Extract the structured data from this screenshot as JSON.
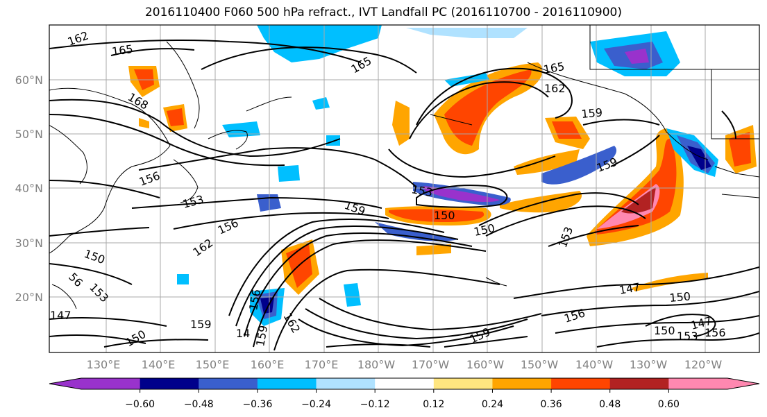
{
  "title": "2016110400 F060 500 hPa refract., IVT Landfall PC (2016110700 - 2016110900)",
  "map": {
    "lat_labels": [
      "60°N",
      "50°N",
      "40°N",
      "30°N",
      "20°N"
    ],
    "lon_labels": [
      "130°E",
      "140°E",
      "150°E",
      "160°E",
      "170°E",
      "180°W",
      "170°W",
      "160°W",
      "150°W",
      "140°W",
      "130°W",
      "120°W"
    ],
    "contour_labels": [
      {
        "text": "162"
      },
      {
        "text": "165"
      },
      {
        "text": "165"
      },
      {
        "text": "168"
      },
      {
        "text": "165"
      },
      {
        "text": "162"
      },
      {
        "text": "159"
      },
      {
        "text": "156"
      },
      {
        "text": "153"
      },
      {
        "text": "156"
      },
      {
        "text": "159"
      },
      {
        "text": "150"
      },
      {
        "text": "153"
      },
      {
        "text": "150"
      },
      {
        "text": "162"
      },
      {
        "text": "150"
      },
      {
        "text": "159"
      },
      {
        "text": "153"
      },
      {
        "text": "56"
      },
      {
        "text": "153"
      },
      {
        "text": "147"
      },
      {
        "text": "159"
      },
      {
        "text": "156"
      },
      {
        "text": "162"
      },
      {
        "text": "159"
      },
      {
        "text": "156"
      },
      {
        "text": "147"
      },
      {
        "text": "150"
      },
      {
        "text": "150"
      },
      {
        "text": "153"
      },
      {
        "text": "147"
      },
      {
        "text": "156"
      },
      {
        "text": "150"
      },
      {
        "text": "159"
      },
      {
        "text": "14"
      }
    ]
  },
  "colorbar": {
    "colors": [
      "#9932cc",
      "#00008b",
      "#3a5fcd",
      "#00bfff",
      "#b0e2ff",
      "#ffffff",
      "#ffe680",
      "#ffa500",
      "#ff4500",
      "#b22222",
      "#ff88b0"
    ],
    "tick_labels": [
      "−0.60",
      "−0.48",
      "−0.36",
      "−0.24",
      "−0.12",
      "0.12",
      "0.24",
      "0.36",
      "0.48",
      "0.60"
    ]
  }
}
